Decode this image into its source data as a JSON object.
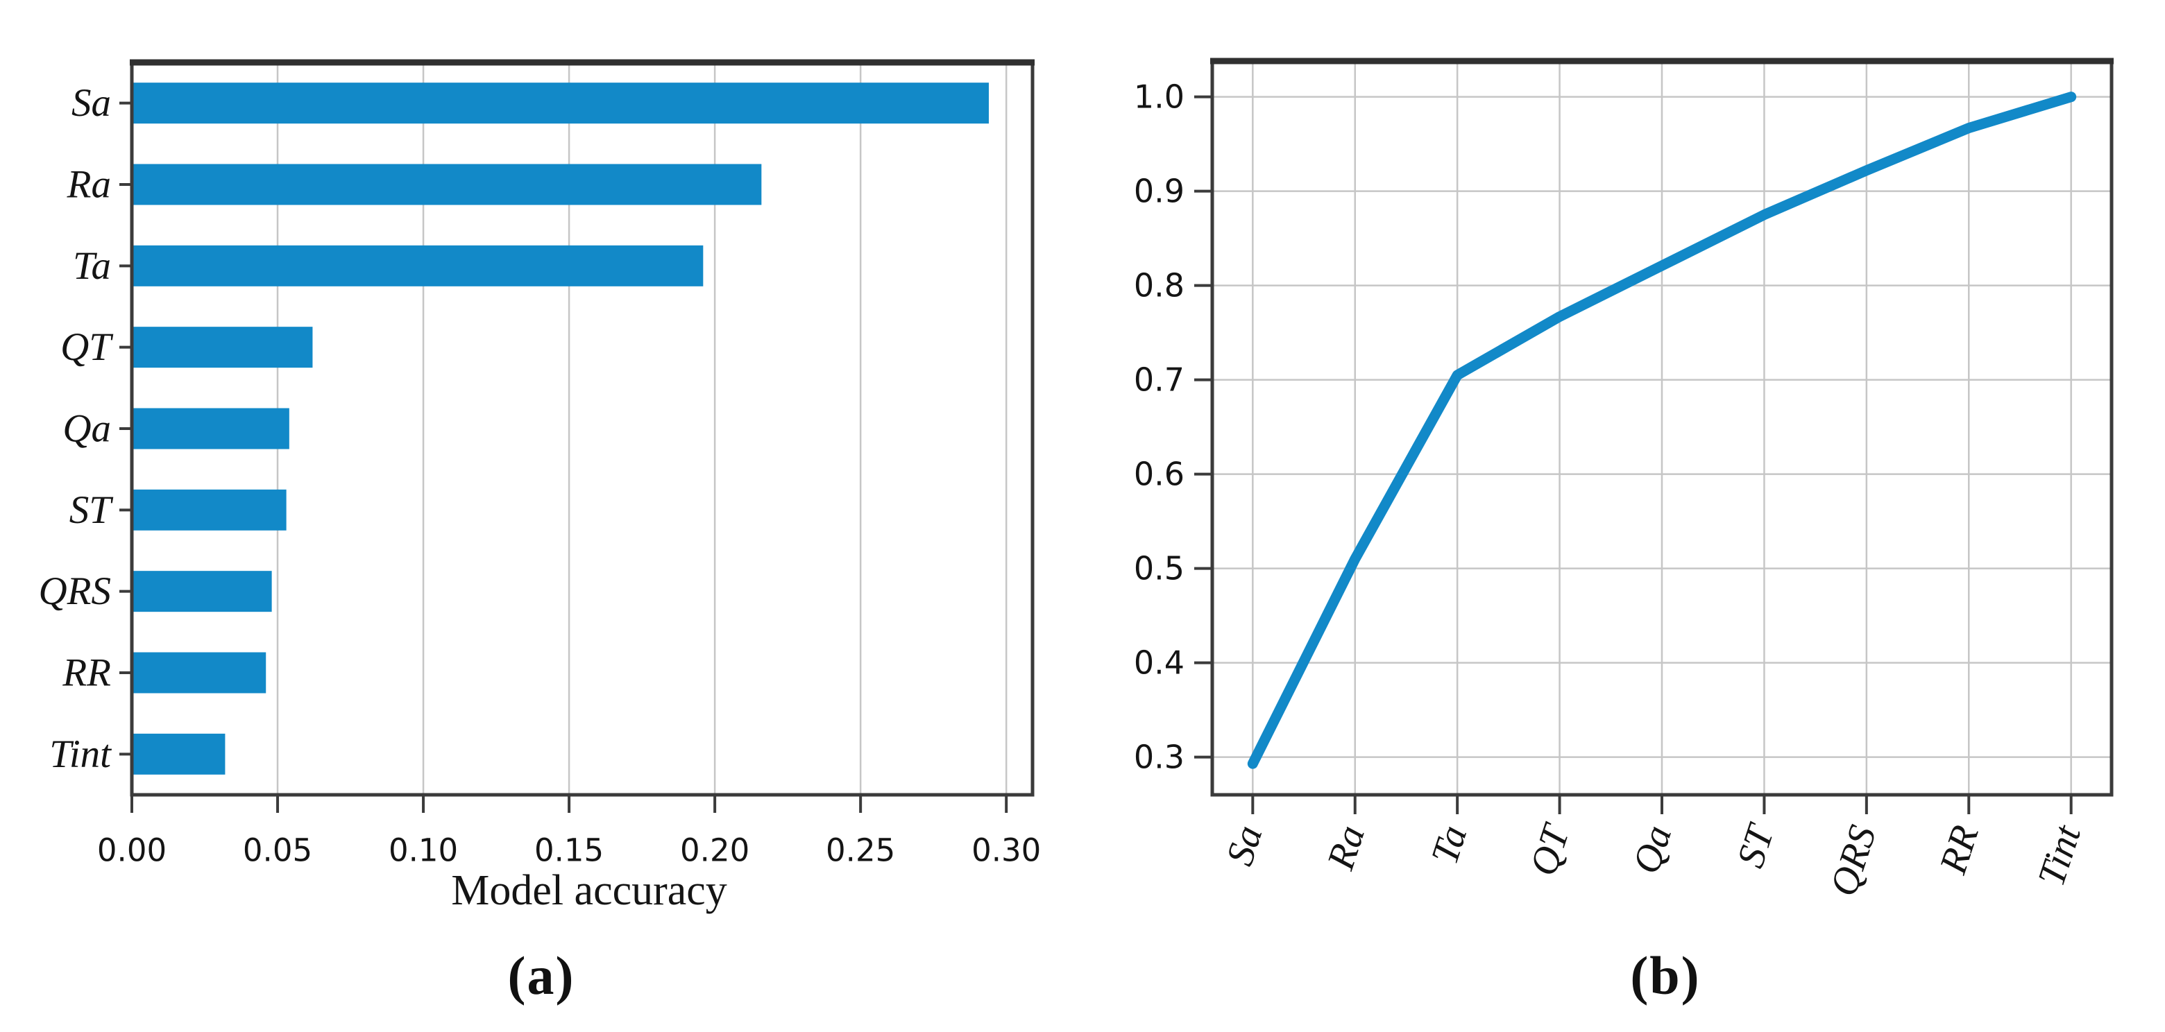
{
  "figure": {
    "background": "#ffffff",
    "accent_color": "#1289c8",
    "grid_color": "#c6c6c6",
    "spine_color": "#3b3b3b",
    "top_spine_color": "#303030",
    "text_color": "#141414",
    "caption_a": "(a)",
    "caption_b": "(b)"
  },
  "chart_data": [
    {
      "id": "panel-a",
      "type": "bar",
      "orientation": "horizontal",
      "title": "",
      "categories": [
        "Sa",
        "Ra",
        "Ta",
        "QT",
        "Qa",
        "ST",
        "QRS",
        "RR",
        "Tint"
      ],
      "values": [
        0.294,
        0.216,
        0.196,
        0.062,
        0.054,
        0.053,
        0.048,
        0.046,
        0.032
      ],
      "xlabel": "Model accuracy",
      "ylabel": "",
      "xlim": [
        0,
        0.309
      ],
      "xtick_labels": [
        "0.00",
        "0.05",
        "0.10",
        "0.15",
        "0.20",
        "0.25",
        "0.30"
      ],
      "xtick_values": [
        0,
        0.05,
        0.1,
        0.15,
        0.2,
        0.25,
        0.3
      ],
      "grid": "vertical",
      "legend": "none"
    },
    {
      "id": "panel-b",
      "type": "line",
      "title": "",
      "categories": [
        "Sa",
        "Ra",
        "Ta",
        "QT",
        "Qa",
        "ST",
        "QRS",
        "RR",
        "Tint"
      ],
      "values": [
        0.293,
        0.51,
        0.705,
        0.767,
        0.821,
        0.875,
        0.922,
        0.967,
        1.0
      ],
      "xlabel": "",
      "ylabel": "",
      "ylim": [
        0.26,
        1.038
      ],
      "ytick_labels": [
        "0.3",
        "0.4",
        "0.5",
        "0.6",
        "0.7",
        "0.8",
        "0.9",
        "1.0"
      ],
      "ytick_values": [
        0.3,
        0.4,
        0.5,
        0.6,
        0.7,
        0.8,
        0.9,
        1.0
      ],
      "x_margin_fraction": 0.045,
      "grid": "both",
      "legend": "none"
    }
  ]
}
